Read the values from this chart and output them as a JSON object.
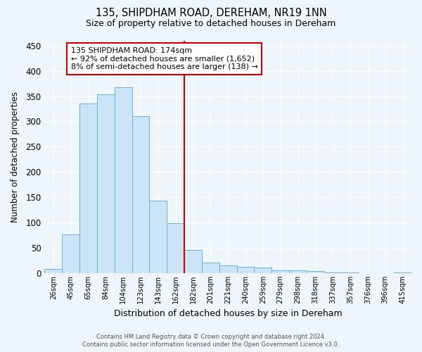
{
  "title": "135, SHIPDHAM ROAD, DEREHAM, NR19 1NN",
  "subtitle": "Size of property relative to detached houses in Dereham",
  "xlabel": "Distribution of detached houses by size in Dereham",
  "ylabel": "Number of detached properties",
  "bin_labels": [
    "26sqm",
    "45sqm",
    "65sqm",
    "84sqm",
    "104sqm",
    "123sqm",
    "143sqm",
    "162sqm",
    "182sqm",
    "201sqm",
    "221sqm",
    "240sqm",
    "259sqm",
    "279sqm",
    "298sqm",
    "318sqm",
    "337sqm",
    "357sqm",
    "376sqm",
    "396sqm",
    "415sqm"
  ],
  "bar_heights": [
    8,
    76,
    335,
    354,
    368,
    310,
    144,
    99,
    46,
    21,
    16,
    13,
    11,
    6,
    5,
    4,
    2,
    1,
    0,
    0,
    1
  ],
  "bar_color": "#cce5f6",
  "bar_edge_color": "#6ab0d8",
  "vline_x": 7.5,
  "vline_color": "#cc0000",
  "annotation_title": "135 SHIPDHAM ROAD: 174sqm",
  "annotation_line1": "← 92% of detached houses are smaller (1,652)",
  "annotation_line2": "8% of semi-detached houses are larger (138) →",
  "annotation_box_edge": "#cc0000",
  "ylim": [
    0,
    460
  ],
  "yticks": [
    0,
    50,
    100,
    150,
    200,
    250,
    300,
    350,
    400,
    450
  ],
  "footer_line1": "Contains HM Land Registry data © Crown copyright and database right 2024.",
  "footer_line2": "Contains public sector information licensed under the Open Government Licence v3.0.",
  "background_color": "#eef5fb"
}
